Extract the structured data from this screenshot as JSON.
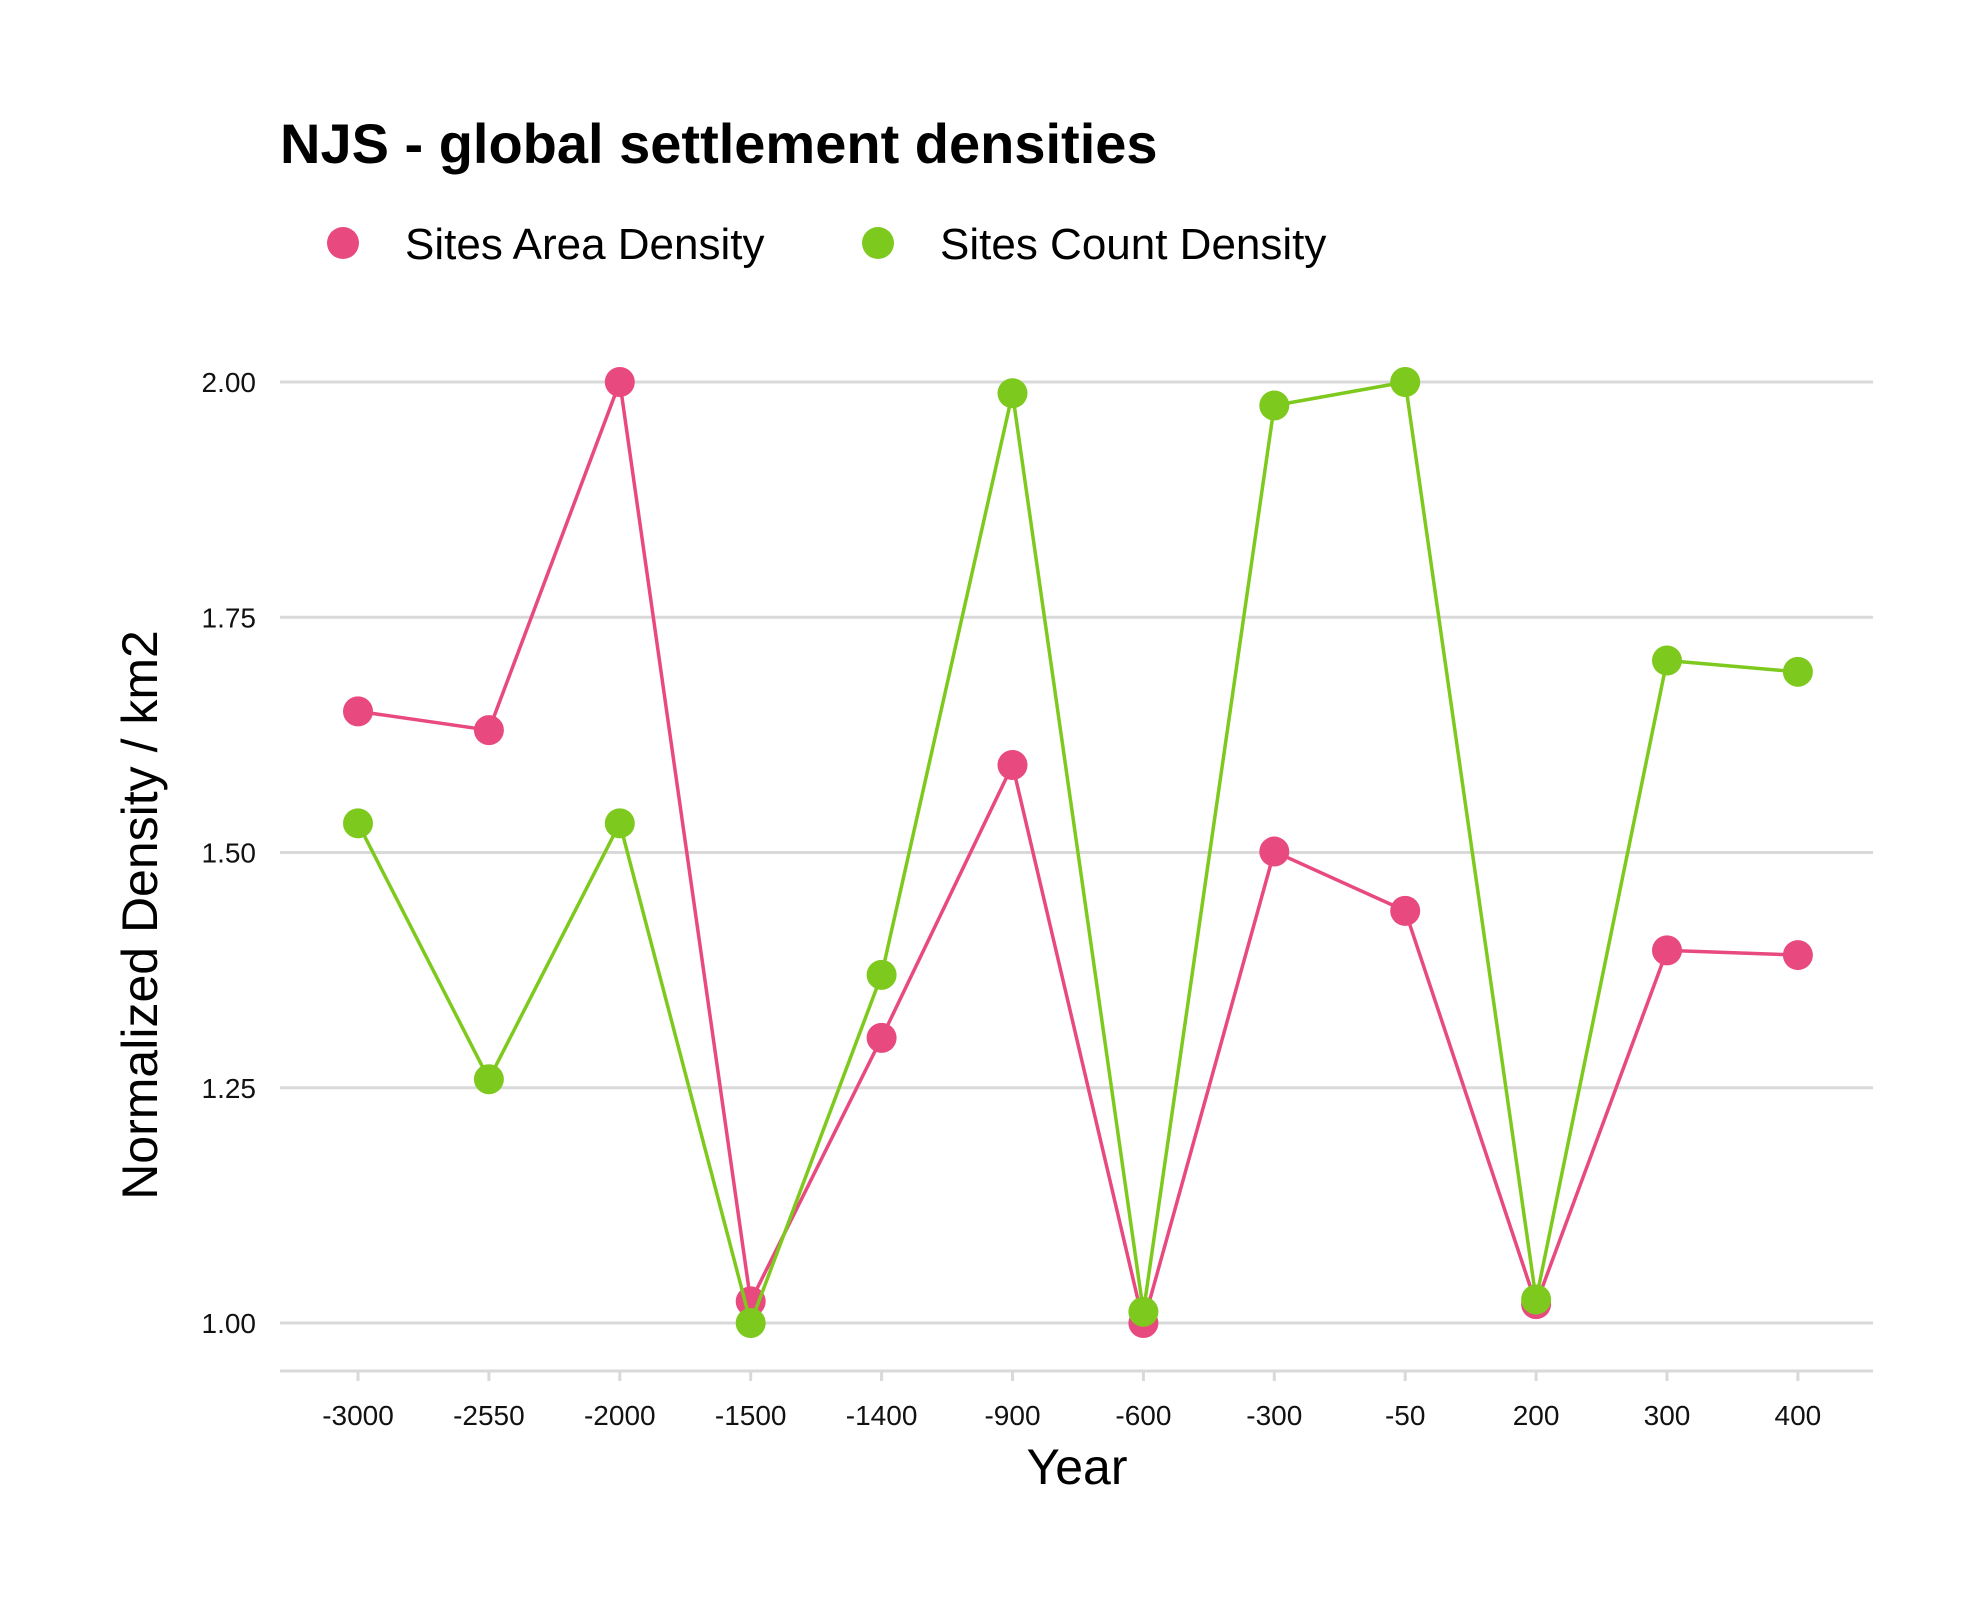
{
  "chart_data": {
    "type": "line",
    "title": "NJS  - global settlement densities",
    "xlabel": "Year",
    "ylabel": "Normalized Density / km2",
    "categories": [
      "-3000",
      "-2550",
      "-2000",
      "-1500",
      "-1400",
      "-900",
      "-600",
      "-300",
      "-50",
      "200",
      "300",
      "400"
    ],
    "series": [
      {
        "name": "Sites Area Density",
        "color": "#e8497f",
        "values": [
          1.65,
          1.63,
          2.0,
          1.023,
          1.303,
          1.593,
          1.0,
          1.501,
          1.438,
          1.02,
          1.396,
          1.391
        ]
      },
      {
        "name": "Sites Count Density",
        "color": "#7ec91e",
        "values": [
          1.531,
          1.259,
          1.531,
          1.0,
          1.37,
          1.988,
          1.012,
          1.975,
          2.0,
          1.025,
          1.704,
          1.692
        ]
      }
    ],
    "ylim": [
      0.95,
      2.0
    ],
    "yticks": [
      "1.00",
      "1.25",
      "1.50",
      "1.75",
      "2.00"
    ],
    "ytick_values": [
      1.0,
      1.25,
      1.5,
      1.75,
      2.0
    ],
    "grid": "horizontal",
    "legend_position": "top-left",
    "markers": "circle"
  }
}
